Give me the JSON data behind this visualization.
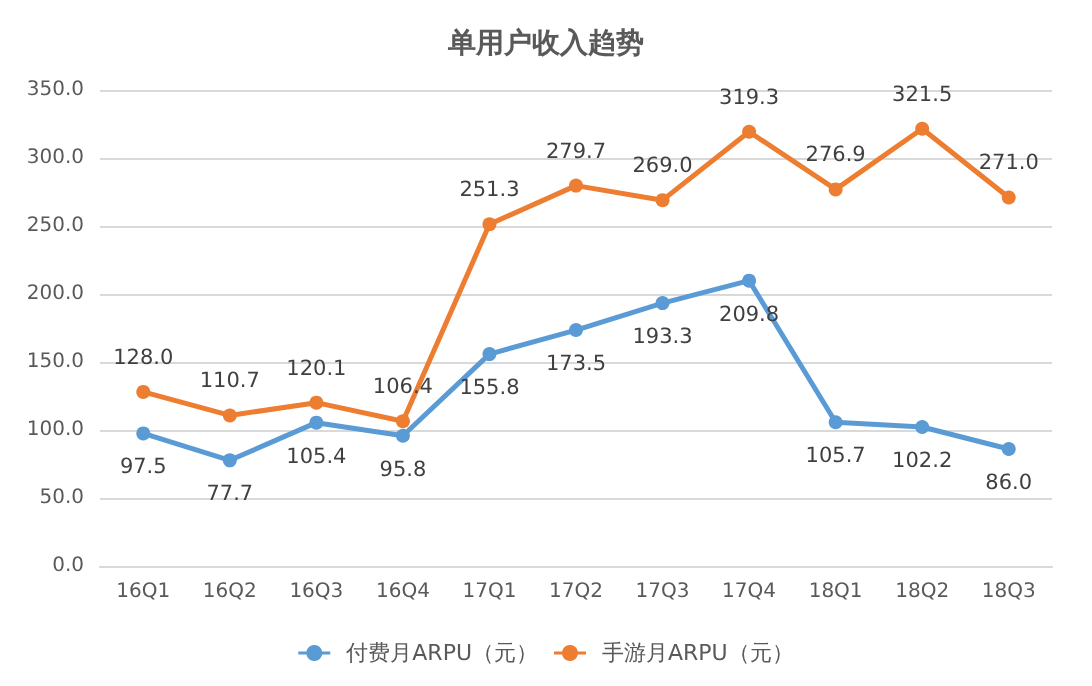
{
  "chart_data": {
    "type": "line",
    "title": "单用户收入趋势",
    "categories": [
      "16Q1",
      "16Q2",
      "16Q3",
      "16Q4",
      "17Q1",
      "17Q2",
      "17Q3",
      "17Q4",
      "18Q1",
      "18Q2",
      "18Q3"
    ],
    "series": [
      {
        "name": "付费月ARPU（元）",
        "color": "#5b9bd5",
        "values": [
          97.5,
          77.7,
          105.4,
          95.8,
          155.8,
          173.5,
          193.3,
          209.8,
          105.7,
          102.2,
          86.0
        ],
        "value_labels": [
          "97.5",
          "77.7",
          "105.4",
          "95.8",
          "155.8",
          "173.5",
          "193.3",
          "209.8",
          "105.7",
          "102.2",
          "86.0"
        ]
      },
      {
        "name": "手游月ARPU（元）",
        "color": "#ed7d31",
        "values": [
          128.0,
          110.7,
          120.1,
          106.4,
          251.3,
          279.7,
          269.0,
          319.3,
          276.9,
          321.5,
          271.0
        ],
        "value_labels": [
          "128.0",
          "110.7",
          "120.1",
          "106.4",
          "251.3",
          "279.7",
          "269.0",
          "319.3",
          "276.9",
          "321.5",
          "271.0"
        ]
      }
    ],
    "ylim": [
      0,
      350
    ],
    "yticks": [
      {
        "value": 0,
        "label": "0.0"
      },
      {
        "value": 50,
        "label": "50.0"
      },
      {
        "value": 100,
        "label": "100.0"
      },
      {
        "value": 150,
        "label": "150.0"
      },
      {
        "value": 200,
        "label": "200.0"
      },
      {
        "value": 250,
        "label": "250.0"
      },
      {
        "value": 300,
        "label": "300.0"
      },
      {
        "value": 350,
        "label": "350.0"
      }
    ],
    "grid": "y",
    "legend": "bottom",
    "marker": "circle",
    "line_style": "solid"
  }
}
